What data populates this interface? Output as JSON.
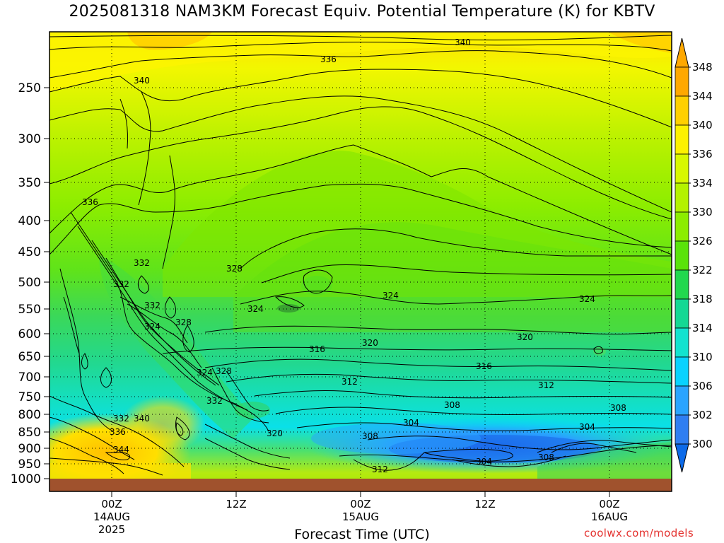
{
  "title": "2025081318 NAM3KM Forecast Equiv. Potential Temperature (K) for KBTV",
  "x_axis_title": "Forecast Time (UTC)",
  "credit": "coolwx.com/models",
  "chart_data": {
    "type": "heatmap",
    "title": "2025081318 NAM3KM Forecast Equiv. Potential Temperature (K) for KBTV",
    "xlabel": "Forecast Time (UTC)",
    "ylabel": "",
    "y_scale": "log pressure (hPa), inverted",
    "ylim": [
      1000,
      200
    ],
    "y_ticks": [
      "250",
      "300",
      "350",
      "400",
      "450",
      "500",
      "550",
      "600",
      "650",
      "700",
      "750",
      "800",
      "850",
      "900",
      "950",
      "1000"
    ],
    "x_ticks": [
      {
        "line1": "00Z",
        "line2": "14AUG",
        "line3": "2025"
      },
      {
        "line1": "12Z",
        "line2": "",
        "line3": ""
      },
      {
        "line1": "00Z",
        "line2": "15AUG",
        "line3": ""
      },
      {
        "line1": "12Z",
        "line2": "",
        "line3": ""
      },
      {
        "line1": "00Z",
        "line2": "16AUG",
        "line3": ""
      }
    ],
    "x_forecast_hours_of_ticks": [
      6,
      18,
      30,
      42,
      54
    ],
    "xlim_forecast_hours": [
      0,
      60
    ],
    "colorbar": {
      "labels": [
        "348",
        "344",
        "340",
        "336",
        "334",
        "330",
        "326",
        "322",
        "318",
        "314",
        "310",
        "306",
        "302",
        "300"
      ],
      "colors": [
        "#ffa800",
        "#ffd000",
        "#fdf100",
        "#d8f800",
        "#b4f200",
        "#8ced00",
        "#5ae30a",
        "#22d84e",
        "#14d894",
        "#12e3cf",
        "#08d2ff",
        "#2aa4ff",
        "#2f7ef2",
        "#0d6ae8"
      ]
    },
    "grid": true,
    "contour_labels": [
      "340",
      "336",
      "340",
      "336",
      "332",
      "332",
      "332",
      "324",
      "328",
      "328",
      "324",
      "328",
      "324",
      "332",
      "324",
      "316",
      "320",
      "324",
      "320",
      "312",
      "316",
      "312",
      "308",
      "304",
      "308",
      "304",
      "308",
      "304",
      "308",
      "312",
      "320",
      "332",
      "340",
      "336",
      "344"
    ]
  }
}
